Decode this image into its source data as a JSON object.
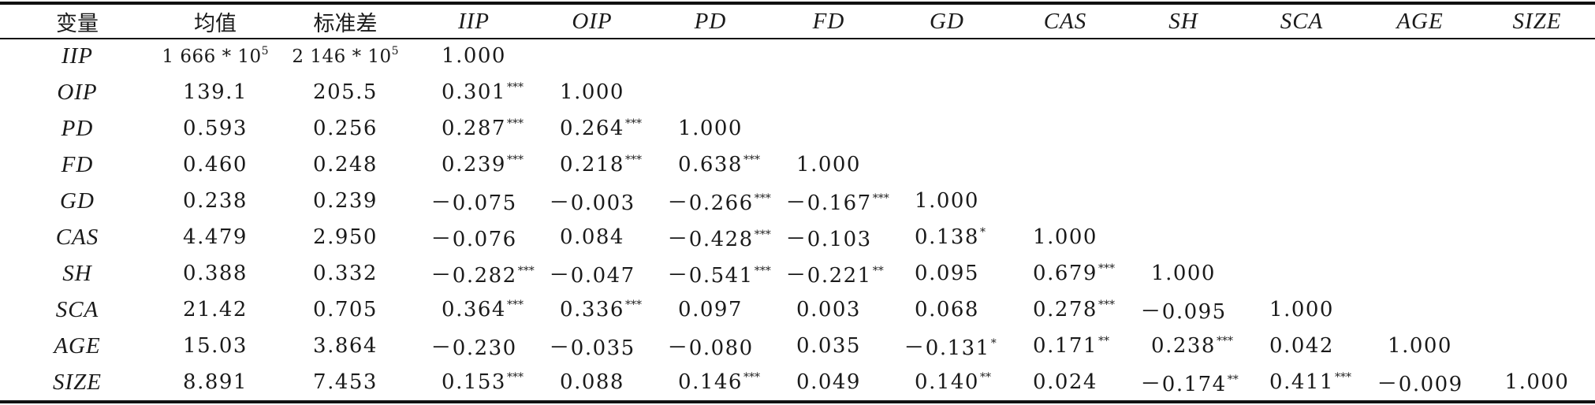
{
  "table": {
    "headers": [
      "变量",
      "均值",
      "标准差",
      "IIP",
      "OIP",
      "PD",
      "FD",
      "GD",
      "CAS",
      "SH",
      "SCA",
      "AGE",
      "SIZE"
    ],
    "rows": [
      {
        "var": "IIP",
        "mean": "1 666 * 10",
        "mean_exp": "5",
        "sd": "2 146 * 10",
        "sd_exp": "5",
        "cells": [
          {
            "v": "1.000",
            "s": ""
          }
        ]
      },
      {
        "var": "OIP",
        "mean": "139.1",
        "sd": "205.5",
        "cells": [
          {
            "v": "0.301",
            "s": "***"
          },
          {
            "v": "1.000",
            "s": ""
          }
        ]
      },
      {
        "var": "PD",
        "mean": "0.593",
        "sd": "0.256",
        "cells": [
          {
            "v": "0.287",
            "s": "***"
          },
          {
            "v": "0.264",
            "s": "***"
          },
          {
            "v": "1.000",
            "s": ""
          }
        ]
      },
      {
        "var": "FD",
        "mean": "0.460",
        "sd": "0.248",
        "cells": [
          {
            "v": "0.239",
            "s": "***"
          },
          {
            "v": "0.218",
            "s": "***"
          },
          {
            "v": "0.638",
            "s": "***"
          },
          {
            "v": "1.000",
            "s": ""
          }
        ]
      },
      {
        "var": "GD",
        "mean": "0.238",
        "sd": "0.239",
        "cells": [
          {
            "v": "－0.075",
            "s": ""
          },
          {
            "v": "－0.003",
            "s": ""
          },
          {
            "v": "－0.266",
            "s": "***"
          },
          {
            "v": "－0.167",
            "s": "***"
          },
          {
            "v": "1.000",
            "s": ""
          }
        ]
      },
      {
        "var": "CAS",
        "mean": "4.479",
        "sd": "2.950",
        "cells": [
          {
            "v": "－0.076",
            "s": ""
          },
          {
            "v": "0.084",
            "s": ""
          },
          {
            "v": "－0.428",
            "s": "***"
          },
          {
            "v": "－0.103",
            "s": ""
          },
          {
            "v": "0.138",
            "s": "*"
          },
          {
            "v": "1.000",
            "s": ""
          }
        ]
      },
      {
        "var": "SH",
        "mean": "0.388",
        "sd": "0.332",
        "cells": [
          {
            "v": "－0.282",
            "s": "***"
          },
          {
            "v": "－0.047",
            "s": ""
          },
          {
            "v": "－0.541",
            "s": "***"
          },
          {
            "v": "－0.221",
            "s": "**"
          },
          {
            "v": "0.095",
            "s": ""
          },
          {
            "v": "0.679",
            "s": "***"
          },
          {
            "v": "1.000",
            "s": ""
          }
        ]
      },
      {
        "var": "SCA",
        "mean": "21.42",
        "sd": "0.705",
        "cells": [
          {
            "v": "0.364",
            "s": "***"
          },
          {
            "v": "0.336",
            "s": "***"
          },
          {
            "v": "0.097",
            "s": ""
          },
          {
            "v": "0.003",
            "s": ""
          },
          {
            "v": "0.068",
            "s": ""
          },
          {
            "v": "0.278",
            "s": "***"
          },
          {
            "v": "－0.095",
            "s": ""
          },
          {
            "v": "1.000",
            "s": ""
          }
        ]
      },
      {
        "var": "AGE",
        "mean": "15.03",
        "sd": "3.864",
        "cells": [
          {
            "v": "－0.230",
            "s": ""
          },
          {
            "v": "－0.035",
            "s": ""
          },
          {
            "v": "－0.080",
            "s": ""
          },
          {
            "v": "0.035",
            "s": ""
          },
          {
            "v": "－0.131",
            "s": "*"
          },
          {
            "v": "0.171",
            "s": "**"
          },
          {
            "v": "0.238",
            "s": "***"
          },
          {
            "v": "0.042",
            "s": ""
          },
          {
            "v": "1.000",
            "s": ""
          }
        ]
      },
      {
        "var": "SIZE",
        "mean": "8.891",
        "sd": "7.453",
        "cells": [
          {
            "v": "0.153",
            "s": "***"
          },
          {
            "v": "0.088",
            "s": ""
          },
          {
            "v": "0.146",
            "s": "***"
          },
          {
            "v": "0.049",
            "s": ""
          },
          {
            "v": "0.140",
            "s": "**"
          },
          {
            "v": "0.024",
            "s": ""
          },
          {
            "v": "－0.174",
            "s": "**"
          },
          {
            "v": "0.411",
            "s": "***"
          },
          {
            "v": "－0.009",
            "s": ""
          },
          {
            "v": "1.000",
            "s": ""
          }
        ]
      }
    ]
  }
}
